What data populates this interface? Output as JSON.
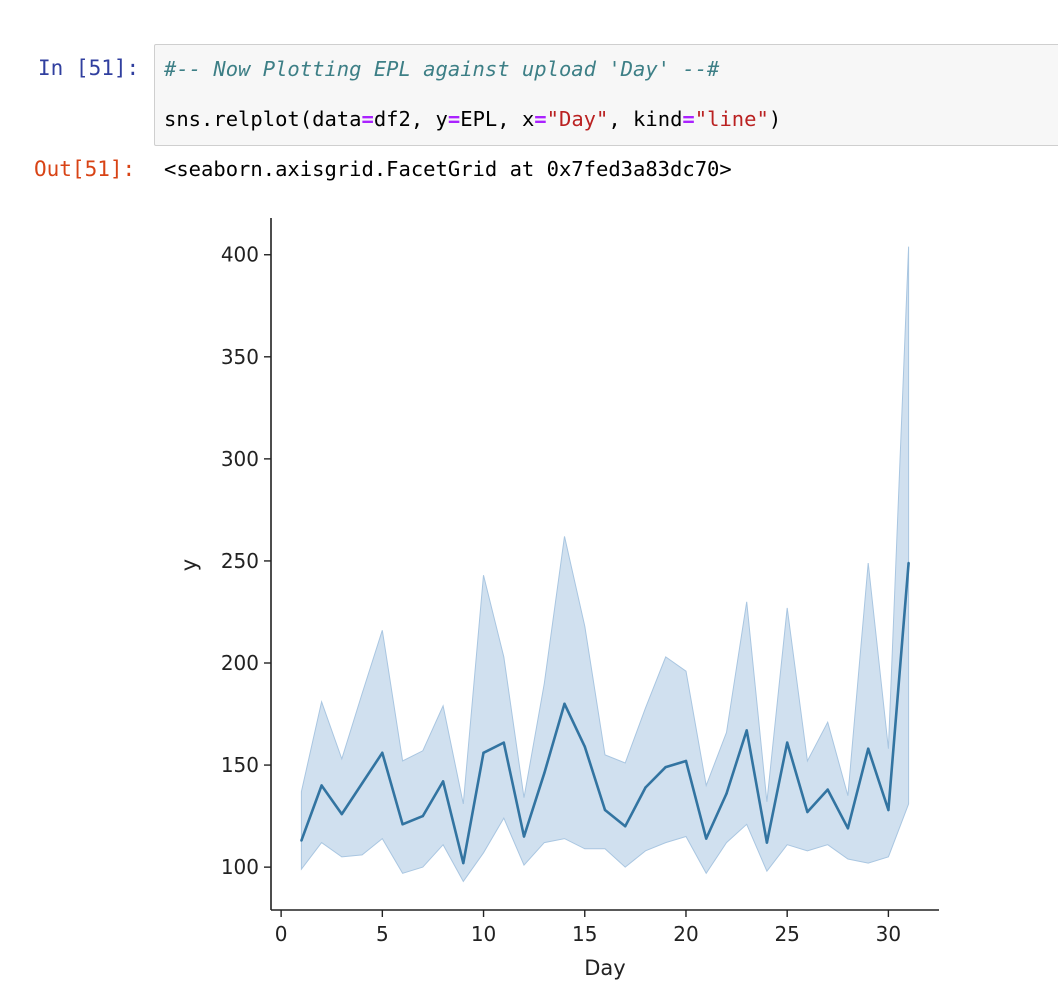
{
  "notebook": {
    "input_prompt": "In [51]:",
    "output_prompt": "Out[51]:",
    "code_comment": "#-- Now Plotting EPL against upload 'Day' --#",
    "code_call": {
      "t1": "sns.relplot(data",
      "t2": "=",
      "t3": "df2, y",
      "t4": "=",
      "t5": "EPL, x",
      "t6": "=",
      "t7": "\"Day\"",
      "t8": ", kind",
      "t9": "=",
      "t10": "\"line\"",
      "t11": ")"
    },
    "output_text": "<seaborn.axisgrid.FacetGrid at 0x7fed3a83dc70>"
  },
  "chart_data": {
    "type": "line",
    "xlabel": "Day",
    "ylabel": "y",
    "xlim": [
      -0.5,
      32.5
    ],
    "ylim": [
      79,
      418
    ],
    "xticks": [
      0,
      5,
      10,
      15,
      20,
      25,
      30
    ],
    "yticks": [
      100,
      150,
      200,
      250,
      300,
      350,
      400
    ],
    "grid": false,
    "line_color": "#3274a1",
    "band_color": "#a9c6e1",
    "series": [
      {
        "x": [
          1,
          2,
          3,
          4,
          5,
          6,
          7,
          8,
          9,
          10,
          11,
          12,
          13,
          14,
          15,
          16,
          17,
          18,
          19,
          20,
          21,
          22,
          23,
          24,
          25,
          26,
          27,
          28,
          29,
          30,
          31
        ],
        "values": [
          113,
          140,
          126,
          141,
          156,
          121,
          125,
          142,
          102,
          156,
          161,
          115,
          146,
          180,
          159,
          128,
          120,
          139,
          149,
          152,
          114,
          136,
          167,
          112,
          161,
          127,
          138,
          119,
          158,
          128,
          249
        ],
        "ci_upper": [
          137,
          181,
          153,
          185,
          216,
          152,
          157,
          179,
          131,
          243,
          203,
          134,
          190,
          262,
          218,
          155,
          151,
          178,
          203,
          196,
          140,
          166,
          230,
          132,
          227,
          152,
          171,
          135,
          249,
          158,
          404
        ],
        "ci_lower": [
          99,
          112,
          105,
          106,
          114,
          97,
          100,
          111,
          93,
          107,
          124,
          101,
          112,
          114,
          109,
          109,
          100,
          108,
          112,
          115,
          97,
          112,
          121,
          98,
          111,
          108,
          111,
          104,
          102,
          105,
          131
        ]
      }
    ]
  }
}
